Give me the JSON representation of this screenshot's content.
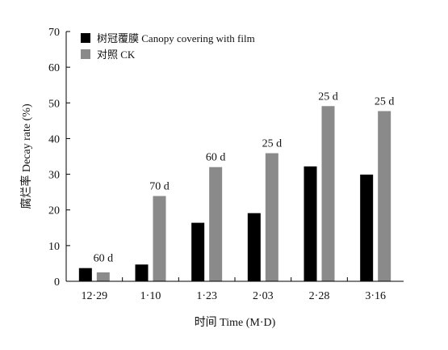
{
  "chart_data": {
    "type": "bar",
    "xlabel": "时间 Time (M·D)",
    "ylabel": "腐烂率 Decay rate (%)",
    "ylim": [
      0,
      70
    ],
    "yticks": [
      0,
      10,
      20,
      30,
      40,
      50,
      60,
      70
    ],
    "categories": [
      "12·29",
      "1·10",
      "1·23",
      "2·03",
      "2·28",
      "3·16"
    ],
    "series": [
      {
        "name": "树冠覆膜 Canopy covering with film",
        "color": "#000000",
        "values": [
          3.7,
          4.7,
          16.4,
          19.1,
          32.2,
          29.9
        ]
      },
      {
        "name": "对照 CK",
        "color": "#8a8a8a",
        "values": [
          2.5,
          23.9,
          32.0,
          35.9,
          49.1,
          47.7
        ]
      }
    ],
    "bar_labels": [
      "60 d",
      "70 d",
      "60 d",
      "25 d",
      "25 d",
      "25 d"
    ],
    "legend_position": "top-left",
    "grid": false
  }
}
